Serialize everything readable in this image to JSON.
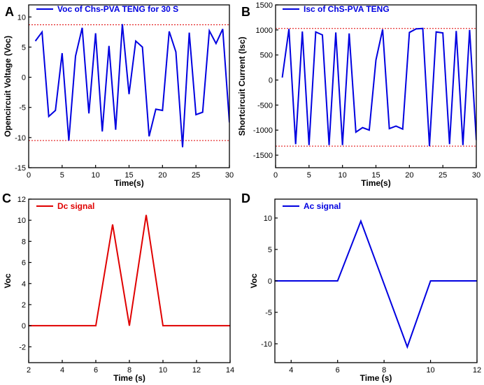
{
  "chart_data": [
    {
      "panel": "A",
      "type": "line",
      "xlabel": "Time(s)",
      "ylabel": "Opencircuit Voltage (Voc)",
      "xlim": [
        0,
        30
      ],
      "ylim": [
        -15,
        12
      ],
      "xticks": [
        0,
        5,
        10,
        15,
        20,
        25,
        30
      ],
      "yticks": [
        -15,
        -10,
        -5,
        0,
        5,
        10
      ],
      "series": [
        {
          "name": "Voc of Chs-PVA TENG for 30 S",
          "color": "#0000e0",
          "x": [
            1,
            2,
            3,
            4,
            5,
            6,
            7,
            8,
            9,
            10,
            11,
            12,
            13,
            14,
            15,
            16,
            17,
            18,
            19,
            20,
            21,
            22,
            23,
            24,
            25,
            26,
            27,
            28,
            29,
            30
          ],
          "y": [
            6,
            7.5,
            -6.5,
            -5.5,
            4,
            -10.5,
            3.5,
            8.2,
            -6,
            7.3,
            -9,
            5.2,
            -8.7,
            8.8,
            -2.8,
            6,
            5,
            -9.8,
            -5.3,
            -5.5,
            7.6,
            4.2,
            -11.6,
            7.4,
            -6.2,
            -5.8,
            7.7,
            5.6,
            8,
            -7.5
          ]
        }
      ],
      "reference_lines": [
        {
          "y": 8.7,
          "color": "#e00000"
        },
        {
          "y": -10.5,
          "color": "#e00000"
        }
      ]
    },
    {
      "panel": "B",
      "type": "line",
      "xlabel": "Time(s)",
      "ylabel": "Shortcircuit Current (Isc)",
      "xlim": [
        0,
        30
      ],
      "ylim": [
        -1750,
        1500
      ],
      "xticks": [
        0,
        5,
        10,
        15,
        20,
        25,
        30
      ],
      "yticks": [
        -1500,
        -1000,
        -500,
        0,
        500,
        1000,
        1500
      ],
      "series": [
        {
          "name": "Isc of ChS-PVA  TENG",
          "color": "#0000e0",
          "x": [
            1,
            2,
            3,
            4,
            5,
            6,
            7,
            8,
            9,
            10,
            11,
            12,
            13,
            14,
            15,
            16,
            17,
            18,
            19,
            20,
            21,
            22,
            23,
            24,
            25,
            26,
            27,
            28,
            29,
            30
          ],
          "y": [
            50,
            1020,
            -1280,
            970,
            -1300,
            960,
            900,
            -1300,
            950,
            -1300,
            930,
            -1040,
            -950,
            -1000,
            400,
            1010,
            -970,
            -920,
            -980,
            950,
            1020,
            1030,
            -1320,
            960,
            940,
            -1280,
            980,
            -1300,
            1000,
            -1200
          ]
        }
      ],
      "reference_lines": [
        {
          "y": 1030,
          "color": "#e00000"
        },
        {
          "y": -1320,
          "color": "#e00000"
        }
      ]
    },
    {
      "panel": "C",
      "type": "line",
      "xlabel": "Time (s)",
      "ylabel": "Voc",
      "xlim": [
        2,
        14
      ],
      "ylim": [
        -3.5,
        12
      ],
      "xticks": [
        2,
        4,
        6,
        8,
        10,
        12,
        14
      ],
      "yticks": [
        -2,
        0,
        2,
        4,
        6,
        8,
        10,
        12
      ],
      "series": [
        {
          "name": "Dc signal",
          "color": "#e00000",
          "x": [
            2,
            6,
            7,
            8,
            9,
            10,
            14
          ],
          "y": [
            0,
            0,
            9.6,
            0,
            10.5,
            0,
            0
          ]
        }
      ]
    },
    {
      "panel": "D",
      "type": "line",
      "xlabel": "Time (s)",
      "ylabel": "Voc",
      "xlim": [
        3.3,
        12
      ],
      "ylim": [
        -13,
        13
      ],
      "xticks": [
        4,
        6,
        8,
        10,
        12
      ],
      "yticks": [
        -10,
        -5,
        0,
        5,
        10
      ],
      "series": [
        {
          "name": "Ac signal",
          "color": "#0000e0",
          "x": [
            3.3,
            6,
            7,
            9,
            10,
            12
          ],
          "y": [
            0,
            0,
            9.5,
            -10.5,
            0,
            0
          ]
        }
      ]
    }
  ]
}
